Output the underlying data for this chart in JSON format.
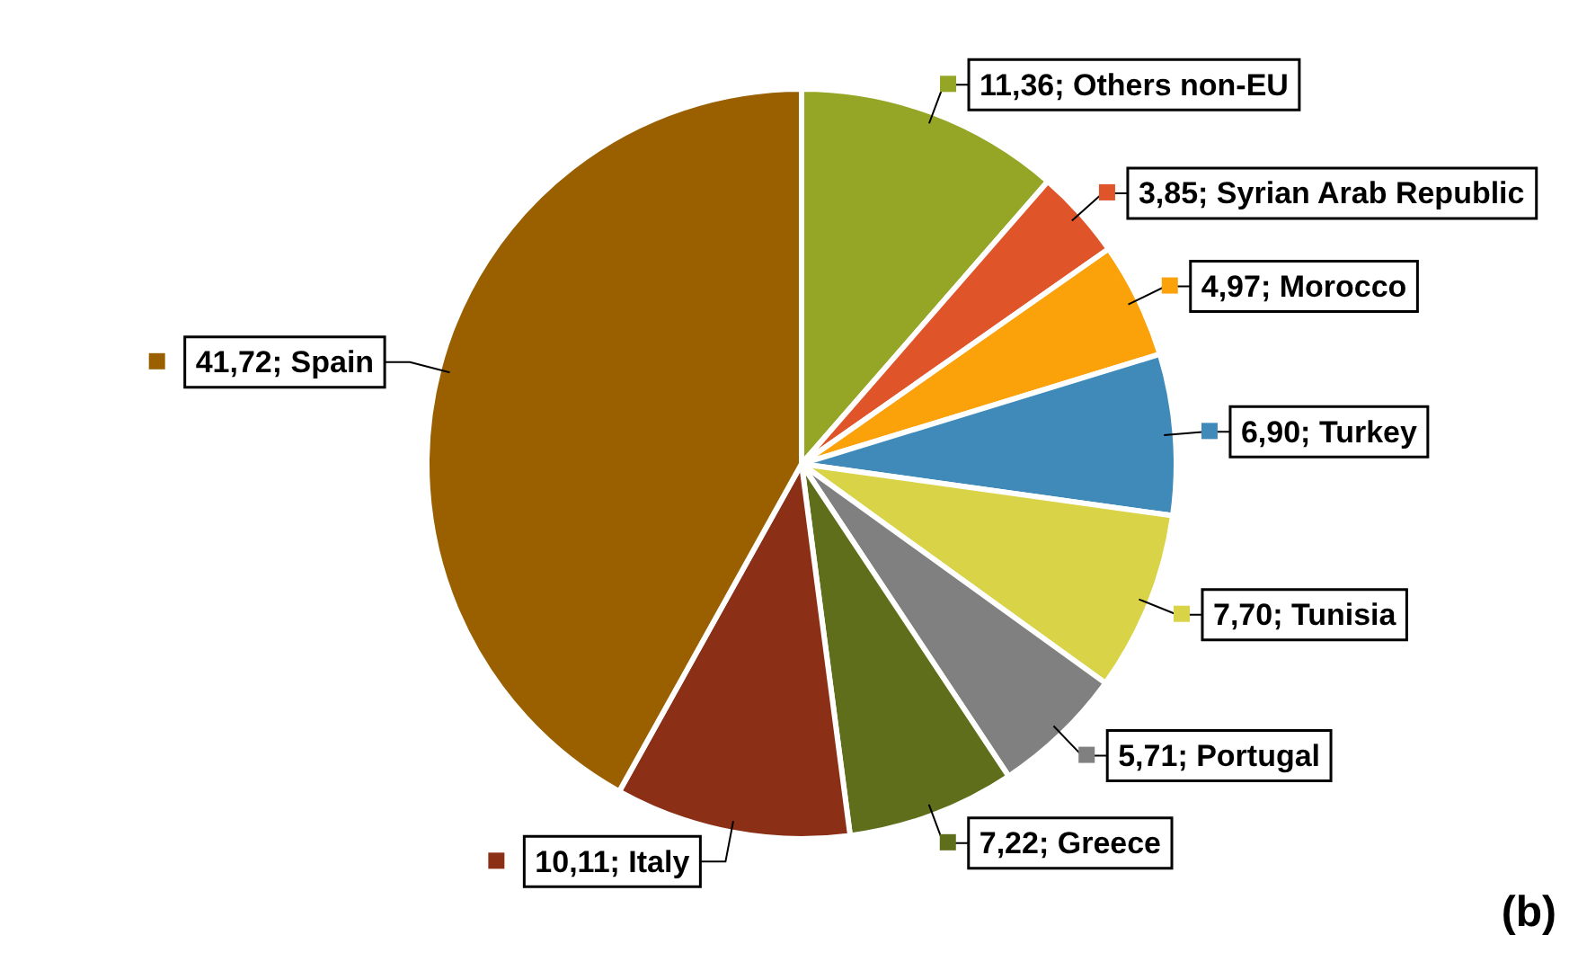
{
  "chart_data": {
    "type": "pie",
    "categories": [
      "Others non-EU",
      "Syrian Arab Republic",
      "Morocco",
      "Turkey",
      "Tunisia",
      "Portugal",
      "Greece",
      "Italy",
      "Spain"
    ],
    "values": [
      11.36,
      3.85,
      4.97,
      6.9,
      7.7,
      5.71,
      7.22,
      10.11,
      41.72
    ],
    "value_labels": [
      "11,36",
      "3,85",
      "4,97",
      "6,90",
      "7,70",
      "5,71",
      "7,22",
      "10,11",
      "41,72"
    ],
    "colors": [
      "#95a626",
      "#e0542a",
      "#fba10a",
      "#3f8ab8",
      "#d9d348",
      "#808080",
      "#5e6e1b",
      "#8b2f16",
      "#9a6000"
    ],
    "legend": "right",
    "annotations": [
      "(b)"
    ]
  }
}
